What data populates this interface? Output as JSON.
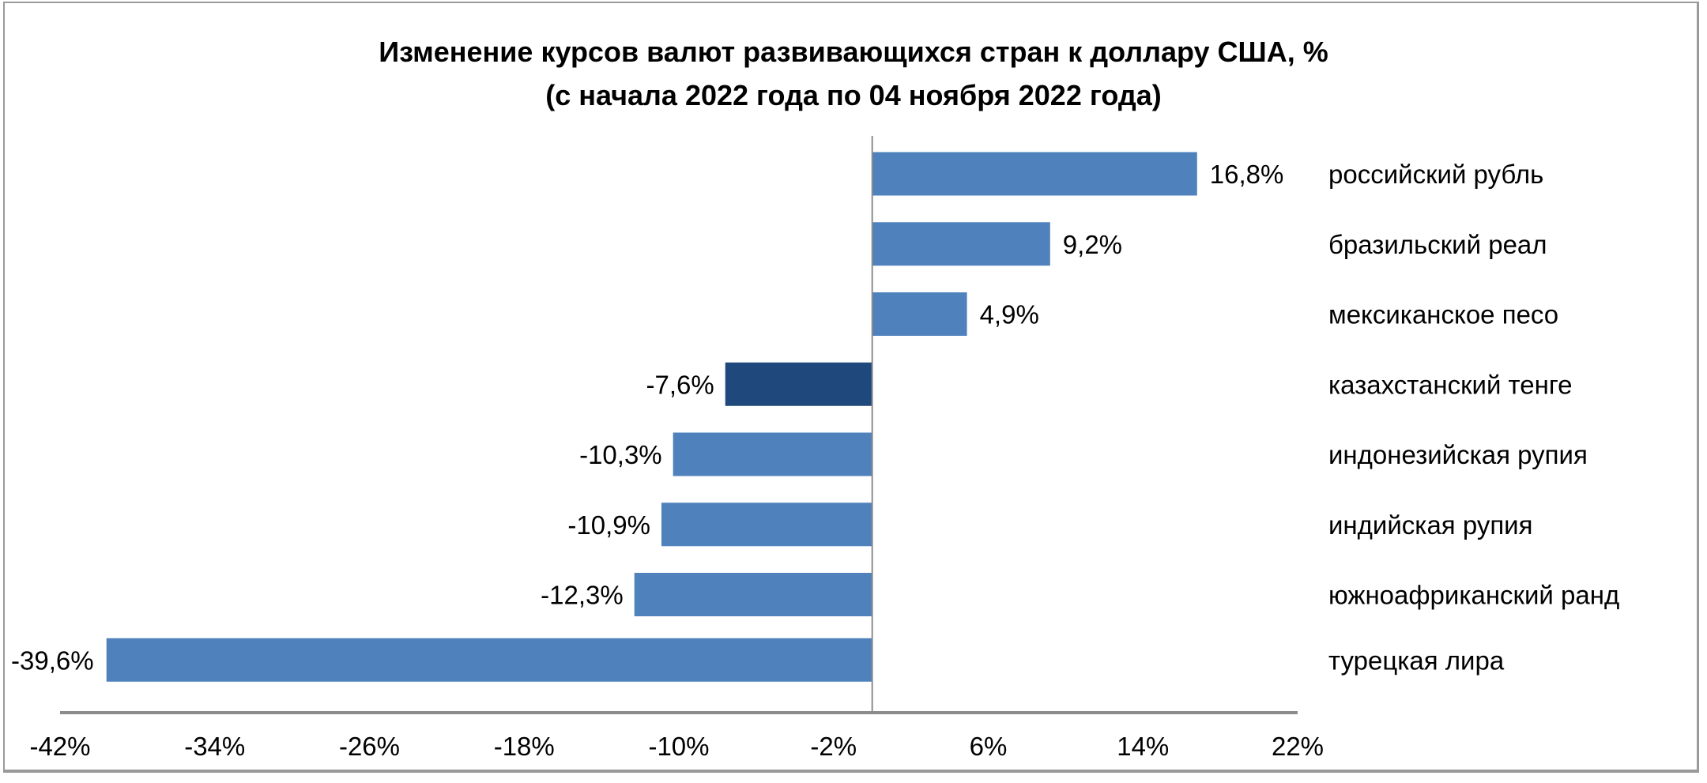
{
  "chart_data": {
    "type": "bar",
    "orientation": "horizontal",
    "title": "Изменение курсов валют развивающихся стран к доллару США, %",
    "subtitle": "(с начала 2022 года по 04 ноября 2022 года)",
    "categories": [
      "российский рубль",
      "бразильский реал",
      "мексиканское песо",
      "казахстанский тенге",
      "индонезийская рупия",
      "индийская рупия",
      "южноафриканский ранд",
      "турецкая лира"
    ],
    "values": [
      16.8,
      9.2,
      4.9,
      -7.6,
      -10.3,
      -10.9,
      -12.3,
      -39.6
    ],
    "data_labels": [
      "16,8%",
      "9,2%",
      "4,9%",
      "-7,6%",
      "-10,3%",
      "-10,9%",
      "-12,3%",
      "-39,6%"
    ],
    "highlight_index": 3,
    "xlim": [
      -42,
      22
    ],
    "x_ticks": [
      -42,
      -34,
      -26,
      -18,
      -10,
      -2,
      6,
      14,
      22
    ],
    "x_tick_labels": [
      "-42%",
      "-34%",
      "-26%",
      "-18%",
      "-10%",
      "-2%",
      "6%",
      "14%",
      "22%"
    ],
    "grid": false,
    "legend": "none",
    "colors": {
      "bar": "#4F81BD",
      "highlight": "#1F497D",
      "axis": "#8c8c8c"
    }
  }
}
